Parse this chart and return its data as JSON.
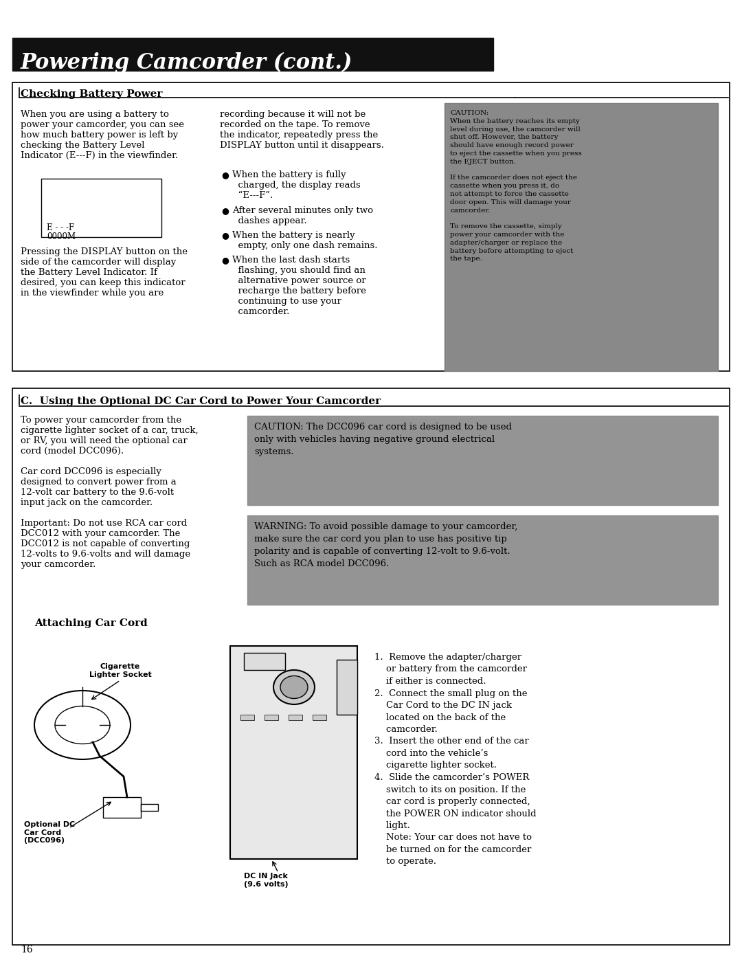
{
  "page_bg": "#ffffff",
  "title_bar_color": "#111111",
  "title_text": "Powering Camcorder (cont.)",
  "title_font_size": 22,
  "title_text_color": "#ffffff",
  "section1_header": "Checking Battery Power",
  "section2_header": "C.  Using the Optional DC Car Cord to Power Your Camcorder",
  "section3_header": "Attaching Car Cord",
  "caution_bg": "#888888",
  "warning_bg": "#888888",
  "page_number": "16",
  "col1_text1": "When you are using a battery to\npower your camcorder, you can see\nhow much battery power is left by\nchecking the Battery Level\nIndicator (E---F) in the viewfinder.",
  "col1_text2": "Pressing the DISPLAY button on the\nside of the camcorder will display\nthe Battery Level Indicator. If\ndesired, you can keep this indicator\nin the viewfinder while you are",
  "col2_text1": "recording because it will not be\nrecorded on the tape. To remove\nthe indicator, repeatedly press the\nDISPLAY button until it disappears.",
  "col2_bullets": [
    "When the battery is fully\n  charged, the display reads\n  “E---F”.",
    "After several minutes only two\n  dashes appear.",
    "When the battery is nearly\n  empty, only one dash remains.",
    "When the last dash starts\n  flashing, you should find an\n  alternative power source or\n  recharge the battery before\n  continuing to use your\n  camcorder."
  ],
  "caution_text": "CAUTION:\nWhen the battery reaches its empty\nlevel during use, the camcorder will\nshut off. However, the battery\nshould have enough record power\nto eject the cassette when you press\nthe EJECT button.\n\nIf the camcorder does not eject the\ncassette when you press it, do\nnot attempt to force the cassette\ndoor open. This will damage your\ncamcorder.\n\nTo remove the cassette, simply\npower your camcorder with the\nadapter/charger or replace the\nbattery before attempting to eject\nthe tape.",
  "dc_text1": "To power your camcorder from the\ncigarette lighter socket of a car, truck,\nor RV, you will need the optional car\ncord (model DCC096).\n\nCar cord DCC096 is especially\ndesigned to convert power from a\n12-volt car battery to the 9.6-volt\ninput jack on the camcorder.\n\nImportant: Do not use RCA car cord\nDCC012 with your camcorder. The\nDCC012 is not capable of converting\n12-volts to 9.6-volts and will damage\nyour camcorder.",
  "caution2_text": "CAUTION: The DCC096 car cord is designed to be used\nonly with vehicles having negative ground electrical\nsystems.",
  "warning_text": "WARNING: To avoid possible damage to your camcorder,\nmake sure the car cord you plan to use has positive tip\npolarity and is capable of converting 12-volt to 9.6-volt.\nSuch as RCA model DCC096.",
  "steps_text": "1.  Remove the adapter/charger\n    or battery from the camcorder\n    if either is connected.\n2.  Connect the small plug on the\n    Car Cord to the DC IN jack\n    located on the back of the\n    camcorder.\n3.  Insert the other end of the car\n    cord into the vehicle’s\n    cigarette lighter socket.\n4.  Slide the camcorder’s POWER\n    switch to its on position. If the\n    car cord is properly connected,\n    the POWER ON indicator should\n    light.\n    Note: Your car does not have to\n    be turned on for the camcorder\n    to operate.",
  "label_cigarette": "Cigarette\nLighter Socket",
  "label_optional_dc": "Optional DC\nCar Cord\n(DCC096)",
  "label_dc_in": "DC IN Jack\n(9.6 volts)"
}
